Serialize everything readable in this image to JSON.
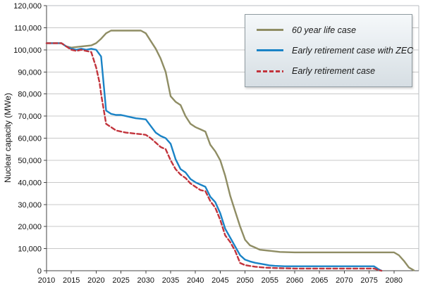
{
  "chart_data": {
    "type": "line",
    "title": "",
    "xlabel": "",
    "ylabel": "Nuclear capacity (MWe)",
    "xlim": [
      2010,
      2085
    ],
    "ylim": [
      0,
      120000
    ],
    "grid": "horizontal",
    "grid_color": "#c8c8c8",
    "axis_color": "#444444",
    "frame_color": "#b9bec2",
    "legend_position": "top-right",
    "x_ticks": [
      "2010",
      "2015",
      "2020",
      "2025",
      "2030",
      "2035",
      "2040",
      "2045",
      "2050",
      "2055",
      "2060",
      "2065",
      "2070",
      "2075",
      "2080"
    ],
    "y_ticks": [
      "0",
      "10,000",
      "20,000",
      "30,000",
      "40,000",
      "50,000",
      "60,000",
      "70,000",
      "80,000",
      "90,000",
      "100,000",
      "110,000",
      "120,000"
    ],
    "series": [
      {
        "name": "60 year life case",
        "color": "#8f8d64",
        "style": "solid",
        "points": [
          [
            2010,
            103000
          ],
          [
            2013,
            103000
          ],
          [
            2014,
            101500
          ],
          [
            2015,
            101000
          ],
          [
            2017,
            101500
          ],
          [
            2019,
            102000
          ],
          [
            2020,
            103000
          ],
          [
            2021,
            105000
          ],
          [
            2022,
            107500
          ],
          [
            2023,
            108700
          ],
          [
            2026,
            108700
          ],
          [
            2029,
            108700
          ],
          [
            2030,
            107500
          ],
          [
            2031,
            104000
          ],
          [
            2032,
            100500
          ],
          [
            2033,
            96000
          ],
          [
            2034,
            90000
          ],
          [
            2035,
            79000
          ],
          [
            2036,
            76500
          ],
          [
            2037,
            75000
          ],
          [
            2038,
            70000
          ],
          [
            2039,
            66500
          ],
          [
            2040,
            65000
          ],
          [
            2041,
            64000
          ],
          [
            2042,
            63000
          ],
          [
            2043,
            57000
          ],
          [
            2044,
            54000
          ],
          [
            2045,
            50000
          ],
          [
            2046,
            43000
          ],
          [
            2047,
            34000
          ],
          [
            2048,
            27000
          ],
          [
            2049,
            20000
          ],
          [
            2050,
            14000
          ],
          [
            2051,
            11500
          ],
          [
            2052,
            10500
          ],
          [
            2053,
            9500
          ],
          [
            2055,
            9000
          ],
          [
            2057,
            8500
          ],
          [
            2060,
            8300
          ],
          [
            2065,
            8300
          ],
          [
            2070,
            8300
          ],
          [
            2075,
            8300
          ],
          [
            2080,
            8300
          ],
          [
            2081,
            7000
          ],
          [
            2082,
            4500
          ],
          [
            2083,
            1500
          ],
          [
            2084,
            200
          ]
        ]
      },
      {
        "name": "Early retirement case with ZEC",
        "color": "#1a83c6",
        "style": "solid",
        "points": [
          [
            2010,
            103000
          ],
          [
            2013,
            103000
          ],
          [
            2014,
            101500
          ],
          [
            2015,
            100500
          ],
          [
            2016,
            100000
          ],
          [
            2017,
            100500
          ],
          [
            2018,
            100000
          ],
          [
            2019,
            100500
          ],
          [
            2020,
            100000
          ],
          [
            2021,
            97000
          ],
          [
            2022,
            72500
          ],
          [
            2023,
            71000
          ],
          [
            2024,
            70500
          ],
          [
            2025,
            70500
          ],
          [
            2026,
            70000
          ],
          [
            2027,
            69500
          ],
          [
            2028,
            69000
          ],
          [
            2029,
            68800
          ],
          [
            2030,
            68500
          ],
          [
            2031,
            65500
          ],
          [
            2032,
            62500
          ],
          [
            2033,
            61000
          ],
          [
            2034,
            60000
          ],
          [
            2035,
            57500
          ],
          [
            2036,
            50500
          ],
          [
            2037,
            46000
          ],
          [
            2038,
            44500
          ],
          [
            2039,
            41500
          ],
          [
            2040,
            40000
          ],
          [
            2041,
            39000
          ],
          [
            2042,
            38000
          ],
          [
            2043,
            33500
          ],
          [
            2044,
            31000
          ],
          [
            2045,
            26000
          ],
          [
            2046,
            19000
          ],
          [
            2047,
            15000
          ],
          [
            2048,
            11000
          ],
          [
            2049,
            7000
          ],
          [
            2050,
            5000
          ],
          [
            2051,
            4200
          ],
          [
            2052,
            3600
          ],
          [
            2053,
            3200
          ],
          [
            2054,
            2800
          ],
          [
            2055,
            2400
          ],
          [
            2056,
            2200
          ],
          [
            2058,
            2000
          ],
          [
            2060,
            2000
          ],
          [
            2065,
            2000
          ],
          [
            2070,
            2000
          ],
          [
            2074,
            2000
          ],
          [
            2076,
            2000
          ],
          [
            2077,
            500
          ],
          [
            2077.5,
            0
          ]
        ]
      },
      {
        "name": "Early retirement case",
        "color": "#c2343c",
        "style": "dashed",
        "points": [
          [
            2010,
            103000
          ],
          [
            2013,
            103000
          ],
          [
            2014,
            101500
          ],
          [
            2015,
            100000
          ],
          [
            2016,
            99500
          ],
          [
            2017,
            100000
          ],
          [
            2018,
            99500
          ],
          [
            2019,
            99000
          ],
          [
            2020,
            92000
          ],
          [
            2020.7,
            85000
          ],
          [
            2021,
            80000
          ],
          [
            2022,
            66500
          ],
          [
            2023,
            65000
          ],
          [
            2024,
            63500
          ],
          [
            2025,
            63000
          ],
          [
            2026,
            62500
          ],
          [
            2027,
            62300
          ],
          [
            2028,
            62000
          ],
          [
            2029,
            61800
          ],
          [
            2030,
            61500
          ],
          [
            2031,
            60000
          ],
          [
            2032,
            58000
          ],
          [
            2033,
            56000
          ],
          [
            2034,
            55000
          ],
          [
            2035,
            50000
          ],
          [
            2036,
            46000
          ],
          [
            2037,
            43500
          ],
          [
            2038,
            42000
          ],
          [
            2039,
            39500
          ],
          [
            2040,
            38000
          ],
          [
            2041,
            36500
          ],
          [
            2042,
            36000
          ],
          [
            2043,
            31500
          ],
          [
            2044,
            28500
          ],
          [
            2045,
            23000
          ],
          [
            2046,
            16000
          ],
          [
            2047,
            13000
          ],
          [
            2048,
            9000
          ],
          [
            2049,
            3500
          ],
          [
            2050,
            2500
          ],
          [
            2052,
            1800
          ],
          [
            2054,
            1400
          ],
          [
            2056,
            1200
          ],
          [
            2060,
            1000
          ],
          [
            2065,
            1000
          ],
          [
            2070,
            1000
          ],
          [
            2074,
            1000
          ],
          [
            2076,
            1000
          ],
          [
            2077,
            200
          ],
          [
            2077.5,
            0
          ]
        ]
      }
    ]
  }
}
